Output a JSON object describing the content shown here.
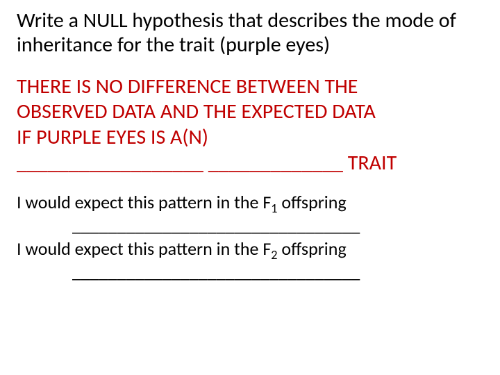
{
  "prompt": "Write a NULL hypothesis that describes the mode of inheritance for the trait (purple eyes)",
  "hypothesis": {
    "line1": "THERE IS NO DIFFERENCE BETWEEN THE",
    "line2": "OBSERVED DATA AND THE EXPECTED DATA",
    "line3": "IF PURPLE EYES IS A(N)",
    "line4": "__________________   _____________ TRAIT"
  },
  "expect": {
    "f1_pre": "I would expect this pattern in the F",
    "f1_sub": "1",
    "f1_post": " offspring",
    "f1_blank": "________________________________",
    "f2_pre": "I would expect this pattern in the F",
    "f2_sub": "2",
    "f2_post": " offspring",
    "f2_blank": "________________________________"
  },
  "colors": {
    "text": "#000000",
    "accent": "#c00000",
    "background": "#ffffff"
  },
  "fontsizes": {
    "prompt": 30,
    "hypothesis": 30,
    "expect": 26
  }
}
